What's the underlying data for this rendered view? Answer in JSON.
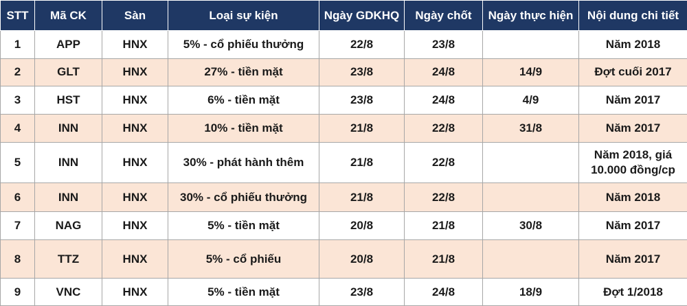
{
  "headers": [
    "STT",
    "Mã CK",
    "Sàn",
    "Loại sự kiện",
    "Ngày GDKHQ",
    "Ngày chốt",
    "Ngày thực hiện",
    "Nội dung chi tiết"
  ],
  "rows": [
    [
      "1",
      "APP",
      "HNX",
      "5% - cổ phiếu thưởng",
      "22/8",
      "23/8",
      "",
      "Năm 2018"
    ],
    [
      "2",
      "GLT",
      "HNX",
      "27% - tiền mặt",
      "23/8",
      "24/8",
      "14/9",
      "Đợt cuối 2017"
    ],
    [
      "3",
      "HST",
      "HNX",
      "6% - tiền mặt",
      "23/8",
      "24/8",
      "4/9",
      "Năm 2017"
    ],
    [
      "4",
      "INN",
      "HNX",
      "10% - tiền mặt",
      "21/8",
      "22/8",
      "31/8",
      "Năm 2017"
    ],
    [
      "5",
      "INN",
      "HNX",
      "30% - phát hành thêm",
      "21/8",
      "22/8",
      "",
      "Năm 2018, giá 10.000 đồng/cp"
    ],
    [
      "6",
      "INN",
      "HNX",
      "30% - cổ phiếu thưởng",
      "21/8",
      "22/8",
      "",
      "Năm 2018"
    ],
    [
      "7",
      "NAG",
      "HNX",
      "5% - tiền mặt",
      "20/8",
      "21/8",
      "30/8",
      "Năm 2017"
    ],
    [
      "8",
      "TTZ",
      "HNX",
      "5% - cổ phiếu",
      "20/8",
      "21/8",
      "",
      "Năm 2017"
    ],
    [
      "9",
      "VNC",
      "HNX",
      "5% - tiền mặt",
      "23/8",
      "24/8",
      "18/9",
      "Đợt 1/2018"
    ]
  ]
}
